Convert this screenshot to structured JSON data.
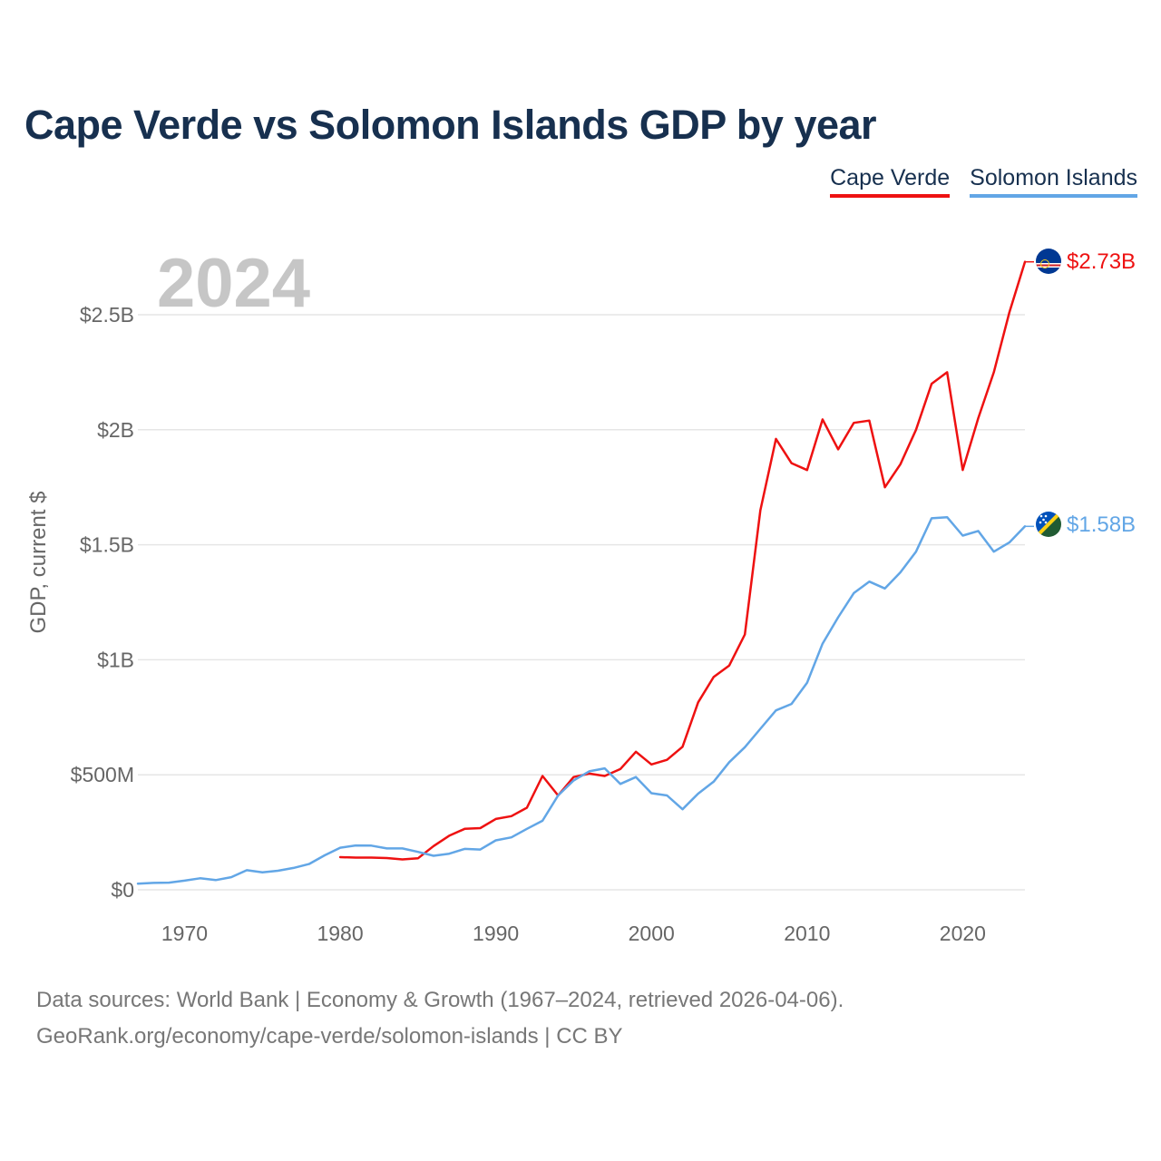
{
  "title": "Cape Verde vs Solomon Islands GDP by year",
  "legend": [
    {
      "label": "Cape Verde",
      "color": "#ee1111"
    },
    {
      "label": "Solomon Islands",
      "color": "#62a6e6"
    }
  ],
  "source": {
    "line1": "Data sources: World Bank | Economy & Growth (1967–2024, retrieved 2026-04-06).",
    "line2": "GeoRank.org/economy/cape-verde/solomon-islands | CC BY"
  },
  "chart_data": {
    "type": "line",
    "title": "Cape Verde vs Solomon Islands GDP by year",
    "year_label": "2024",
    "xlabel": "",
    "ylabel": "GDP, current $",
    "xlim": [
      1967,
      2024
    ],
    "ylim": [
      0,
      2800000000
    ],
    "x_ticks": [
      1970,
      1980,
      1990,
      2000,
      2010,
      2020
    ],
    "y_ticks": [
      {
        "value": 0,
        "label": "$0"
      },
      {
        "value": 500000000,
        "label": "$500M"
      },
      {
        "value": 1000000000,
        "label": "$1B"
      },
      {
        "value": 1500000000,
        "label": "$1.5B"
      },
      {
        "value": 2000000000,
        "label": "$2B"
      },
      {
        "value": 2500000000,
        "label": "$2.5B"
      }
    ],
    "grid": true,
    "legend_position": "top-right",
    "series": [
      {
        "name": "Cape Verde",
        "color": "#ee1111",
        "flag_icon": "cape-verde-flag-icon",
        "end_label": "$2.73B",
        "points": [
          [
            1980,
            142000000
          ],
          [
            1981,
            140000000
          ],
          [
            1982,
            140000000
          ],
          [
            1983,
            138000000
          ],
          [
            1984,
            132000000
          ],
          [
            1985,
            137000000
          ],
          [
            1986,
            190000000
          ],
          [
            1987,
            235000000
          ],
          [
            1988,
            265000000
          ],
          [
            1989,
            268000000
          ],
          [
            1990,
            308000000
          ],
          [
            1991,
            320000000
          ],
          [
            1992,
            357000000
          ],
          [
            1993,
            495000000
          ],
          [
            1994,
            410000000
          ],
          [
            1995,
            490000000
          ],
          [
            1996,
            505000000
          ],
          [
            1997,
            495000000
          ],
          [
            1998,
            525000000
          ],
          [
            1999,
            600000000
          ],
          [
            2000,
            545000000
          ],
          [
            2001,
            565000000
          ],
          [
            2002,
            622000000
          ],
          [
            2003,
            815000000
          ],
          [
            2004,
            925000000
          ],
          [
            2005,
            975000000
          ],
          [
            2006,
            1110000000
          ],
          [
            2007,
            1650000000
          ],
          [
            2008,
            1960000000
          ],
          [
            2009,
            1855000000
          ],
          [
            2010,
            1825000000
          ],
          [
            2011,
            2045000000
          ],
          [
            2012,
            1915000000
          ],
          [
            2013,
            2030000000
          ],
          [
            2014,
            2040000000
          ],
          [
            2015,
            1750000000
          ],
          [
            2016,
            1850000000
          ],
          [
            2017,
            2000000000
          ],
          [
            2018,
            2200000000
          ],
          [
            2019,
            2250000000
          ],
          [
            2020,
            1825000000
          ],
          [
            2021,
            2050000000
          ],
          [
            2022,
            2250000000
          ],
          [
            2023,
            2510000000
          ],
          [
            2024,
            2730000000
          ]
        ]
      },
      {
        "name": "Solomon Islands",
        "color": "#62a6e6",
        "flag_icon": "solomon-islands-flag-icon",
        "end_label": "$1.58B",
        "points": [
          [
            1967,
            27000000
          ],
          [
            1968,
            30000000
          ],
          [
            1969,
            31000000
          ],
          [
            1970,
            40000000
          ],
          [
            1971,
            50000000
          ],
          [
            1972,
            42000000
          ],
          [
            1973,
            55000000
          ],
          [
            1974,
            85000000
          ],
          [
            1975,
            76000000
          ],
          [
            1976,
            83000000
          ],
          [
            1977,
            95000000
          ],
          [
            1978,
            112000000
          ],
          [
            1979,
            150000000
          ],
          [
            1980,
            183000000
          ],
          [
            1981,
            193000000
          ],
          [
            1982,
            192000000
          ],
          [
            1983,
            180000000
          ],
          [
            1984,
            180000000
          ],
          [
            1985,
            165000000
          ],
          [
            1986,
            148000000
          ],
          [
            1987,
            157000000
          ],
          [
            1988,
            178000000
          ],
          [
            1989,
            175000000
          ],
          [
            1990,
            215000000
          ],
          [
            1991,
            228000000
          ],
          [
            1992,
            265000000
          ],
          [
            1993,
            300000000
          ],
          [
            1994,
            410000000
          ],
          [
            1995,
            475000000
          ],
          [
            1996,
            515000000
          ],
          [
            1997,
            528000000
          ],
          [
            1998,
            460000000
          ],
          [
            1999,
            490000000
          ],
          [
            2000,
            420000000
          ],
          [
            2001,
            410000000
          ],
          [
            2002,
            350000000
          ],
          [
            2003,
            418000000
          ],
          [
            2004,
            470000000
          ],
          [
            2005,
            555000000
          ],
          [
            2006,
            620000000
          ],
          [
            2007,
            700000000
          ],
          [
            2008,
            780000000
          ],
          [
            2009,
            808000000
          ],
          [
            2010,
            900000000
          ],
          [
            2011,
            1070000000
          ],
          [
            2012,
            1185000000
          ],
          [
            2013,
            1290000000
          ],
          [
            2014,
            1340000000
          ],
          [
            2015,
            1310000000
          ],
          [
            2016,
            1380000000
          ],
          [
            2017,
            1470000000
          ],
          [
            2018,
            1615000000
          ],
          [
            2019,
            1620000000
          ],
          [
            2020,
            1540000000
          ],
          [
            2021,
            1560000000
          ],
          [
            2022,
            1470000000
          ],
          [
            2023,
            1510000000
          ],
          [
            2024,
            1580000000
          ]
        ]
      }
    ]
  }
}
